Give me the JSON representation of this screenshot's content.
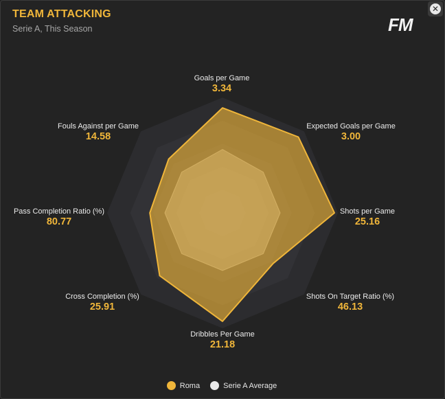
{
  "header": {
    "title": "TEAM ATTACKING",
    "subtitle": "Serie A, This Season",
    "logo": "FM",
    "close_glyph": "✕"
  },
  "colors": {
    "team": "#f0b63a",
    "average": "#e8e8e8",
    "ring_outer": "#2c2c2f",
    "ring_mid": "#38383d",
    "ring_inner": "#45454c"
  },
  "chart_data": {
    "type": "radar",
    "title": "TEAM ATTACKING",
    "subtitle": "Serie A, This Season",
    "axes": [
      {
        "label": "Goals per Game",
        "value_label": "3.34"
      },
      {
        "label": "Expected Goals per Game",
        "value_label": "3.00"
      },
      {
        "label": "Shots per Game",
        "value_label": "25.16"
      },
      {
        "label": "Shots On Target Ratio (%)",
        "value_label": "46.13"
      },
      {
        "label": "Dribbles Per Game",
        "value_label": "21.18"
      },
      {
        "label": "Cross Completion (%)",
        "value_label": "25.91"
      },
      {
        "label": "Pass Completion Ratio (%)",
        "value_label": "80.77"
      },
      {
        "label": "Fouls Against per Game",
        "value_label": "14.58"
      }
    ],
    "series": [
      {
        "name": "Roma",
        "values": [
          0.91,
          0.93,
          0.97,
          0.62,
          0.94,
          0.77,
          0.63,
          0.66
        ]
      },
      {
        "name": "Serie A Average",
        "values": [
          0.55,
          0.5,
          0.5,
          0.5,
          0.5,
          0.5,
          0.5,
          0.5
        ]
      }
    ],
    "legend": "bottom-center"
  },
  "legend": [
    {
      "label": "Roma"
    },
    {
      "label": "Serie A Average"
    }
  ]
}
